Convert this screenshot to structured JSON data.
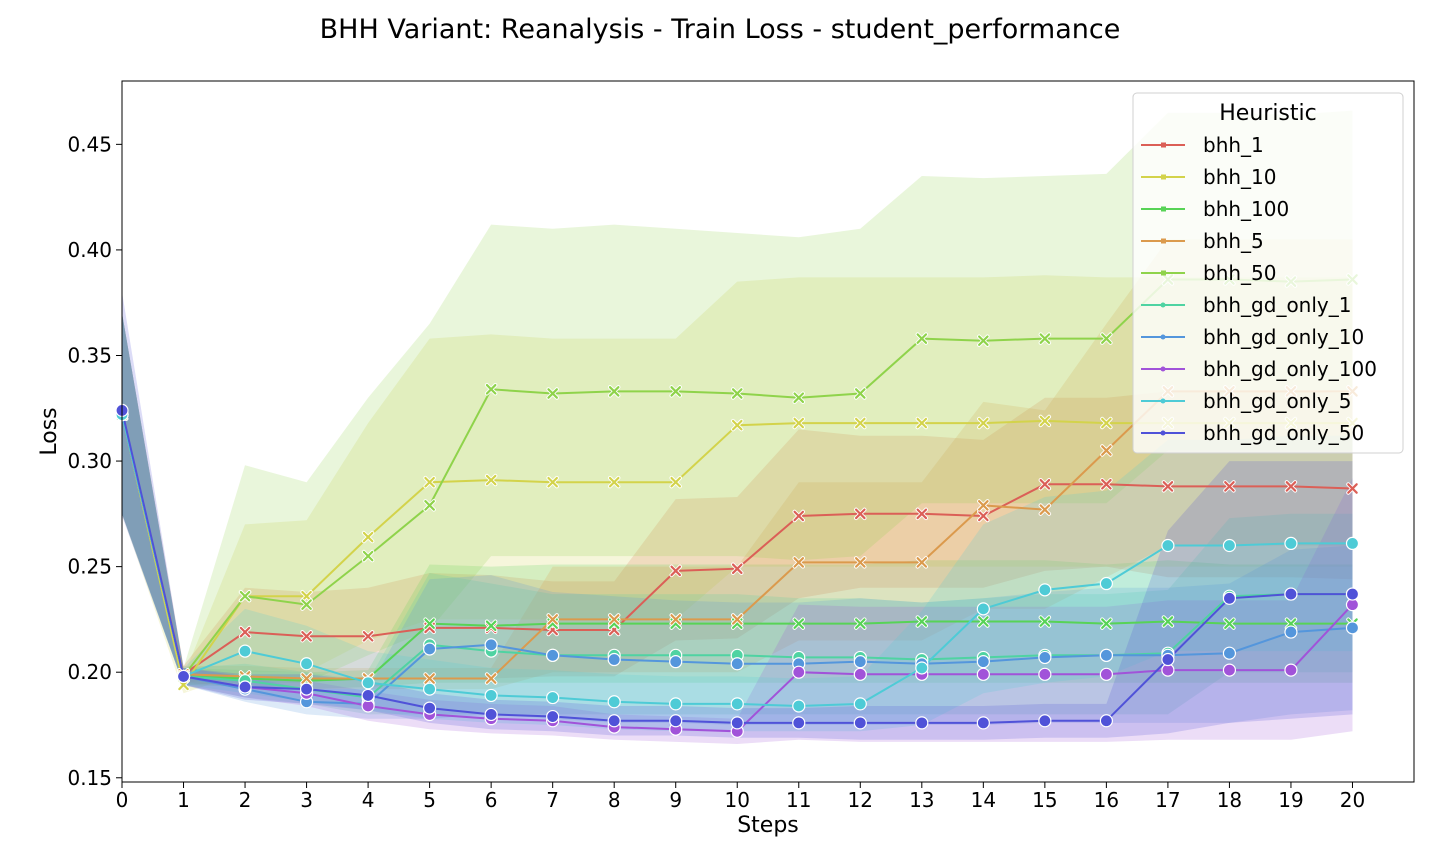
{
  "chart_data": {
    "type": "line",
    "title": "BHH Variant: Reanalysis - Train Loss - student_performance",
    "xlabel": "Steps",
    "ylabel": "Loss",
    "xlim": [
      0,
      21
    ],
    "ylim": [
      0.148,
      0.48
    ],
    "x": [
      0,
      1,
      2,
      3,
      4,
      5,
      6,
      7,
      8,
      9,
      10,
      11,
      12,
      13,
      14,
      15,
      16,
      17,
      18,
      19,
      20
    ],
    "x_ticks": [
      "0",
      "1",
      "2",
      "3",
      "4",
      "5",
      "6",
      "7",
      "8",
      "9",
      "10",
      "11",
      "12",
      "13",
      "14",
      "15",
      "16",
      "17",
      "18",
      "19",
      "20"
    ],
    "y_ticks": [
      0.15,
      0.2,
      0.25,
      0.3,
      0.35,
      0.4,
      0.45
    ],
    "y_tick_labels": [
      "0.15",
      "0.20",
      "0.25",
      "0.30",
      "0.35",
      "0.40",
      "0.45"
    ],
    "grid": false,
    "legend": {
      "title": "Heuristic",
      "placement": "top-right"
    },
    "series": [
      {
        "name": "bhh_1",
        "color": "#db5f57",
        "marker": "x",
        "values": [
          0.322,
          0.199,
          0.219,
          0.217,
          0.217,
          0.221,
          0.221,
          0.22,
          0.22,
          0.248,
          0.249,
          0.274,
          0.275,
          0.275,
          0.274,
          0.289,
          0.289,
          0.288,
          0.288,
          0.288,
          0.287
        ],
        "lower": [
          0.275,
          0.195,
          0.198,
          0.197,
          0.196,
          0.197,
          0.197,
          0.198,
          0.198,
          0.215,
          0.216,
          0.235,
          0.24,
          0.24,
          0.24,
          0.248,
          0.25,
          0.245,
          0.245,
          0.245,
          0.244
        ],
        "upper": [
          0.37,
          0.203,
          0.24,
          0.238,
          0.24,
          0.247,
          0.246,
          0.243,
          0.243,
          0.282,
          0.283,
          0.315,
          0.312,
          0.312,
          0.31,
          0.33,
          0.33,
          0.333,
          0.333,
          0.333,
          0.332
        ]
      },
      {
        "name": "bhh_10",
        "color": "#d3d34b",
        "marker": "x",
        "values": [
          0.322,
          0.194,
          0.236,
          0.236,
          0.264,
          0.29,
          0.291,
          0.29,
          0.29,
          0.29,
          0.317,
          0.318,
          0.318,
          0.318,
          0.318,
          0.319,
          0.318,
          0.318,
          0.318,
          0.318,
          0.318
        ],
        "lower": [
          0.275,
          0.19,
          0.2,
          0.2,
          0.215,
          0.225,
          0.225,
          0.225,
          0.225,
          0.225,
          0.25,
          0.25,
          0.25,
          0.25,
          0.25,
          0.25,
          0.25,
          0.25,
          0.25,
          0.25,
          0.25
        ],
        "upper": [
          0.37,
          0.198,
          0.27,
          0.272,
          0.318,
          0.358,
          0.36,
          0.358,
          0.358,
          0.358,
          0.385,
          0.387,
          0.387,
          0.387,
          0.387,
          0.388,
          0.387,
          0.387,
          0.387,
          0.387,
          0.387
        ]
      },
      {
        "name": "bhh_100",
        "color": "#57d356",
        "marker": "x",
        "values": [
          0.322,
          0.198,
          0.197,
          0.196,
          0.197,
          0.223,
          0.222,
          0.223,
          0.223,
          0.223,
          0.223,
          0.223,
          0.223,
          0.224,
          0.224,
          0.224,
          0.223,
          0.224,
          0.223,
          0.223,
          0.223
        ],
        "lower": [
          0.275,
          0.194,
          0.193,
          0.192,
          0.193,
          0.195,
          0.195,
          0.195,
          0.195,
          0.195,
          0.195,
          0.195,
          0.195,
          0.195,
          0.195,
          0.195,
          0.195,
          0.195,
          0.195,
          0.195,
          0.195
        ],
        "upper": [
          0.37,
          0.202,
          0.201,
          0.2,
          0.201,
          0.251,
          0.25,
          0.251,
          0.251,
          0.251,
          0.251,
          0.251,
          0.251,
          0.253,
          0.253,
          0.253,
          0.251,
          0.253,
          0.251,
          0.251,
          0.251
        ]
      },
      {
        "name": "bhh_5",
        "color": "#db9a4d",
        "marker": "x",
        "values": [
          0.322,
          0.199,
          0.198,
          0.197,
          0.197,
          0.197,
          0.197,
          0.225,
          0.225,
          0.225,
          0.225,
          0.252,
          0.252,
          0.252,
          0.279,
          0.277,
          0.305,
          0.333,
          0.333,
          0.333,
          0.333
        ],
        "lower": [
          0.275,
          0.195,
          0.193,
          0.192,
          0.192,
          0.192,
          0.192,
          0.2,
          0.2,
          0.2,
          0.2,
          0.215,
          0.215,
          0.215,
          0.23,
          0.23,
          0.245,
          0.26,
          0.26,
          0.26,
          0.26
        ],
        "upper": [
          0.37,
          0.203,
          0.203,
          0.202,
          0.202,
          0.202,
          0.202,
          0.25,
          0.25,
          0.25,
          0.25,
          0.29,
          0.29,
          0.29,
          0.328,
          0.324,
          0.365,
          0.405,
          0.405,
          0.405,
          0.405
        ]
      },
      {
        "name": "bhh_50",
        "color": "#8fd34b",
        "marker": "x",
        "values": [
          0.322,
          0.198,
          0.236,
          0.232,
          0.255,
          0.279,
          0.334,
          0.332,
          0.333,
          0.333,
          0.332,
          0.33,
          0.332,
          0.358,
          0.357,
          0.358,
          0.358,
          0.386,
          0.386,
          0.385,
          0.386
        ],
        "lower": [
          0.275,
          0.194,
          0.195,
          0.195,
          0.208,
          0.22,
          0.255,
          0.255,
          0.255,
          0.255,
          0.255,
          0.253,
          0.255,
          0.28,
          0.28,
          0.28,
          0.28,
          0.305,
          0.305,
          0.305,
          0.305
        ],
        "upper": [
          0.37,
          0.202,
          0.298,
          0.29,
          0.33,
          0.365,
          0.412,
          0.41,
          0.412,
          0.41,
          0.408,
          0.406,
          0.41,
          0.435,
          0.434,
          0.435,
          0.436,
          0.465,
          0.465,
          0.464,
          0.466
        ]
      },
      {
        "name": "bhh_gd_only_1",
        "color": "#4fd3a2",
        "marker": "o",
        "values": [
          0.322,
          0.198,
          0.196,
          0.192,
          0.188,
          0.213,
          0.21,
          0.208,
          0.208,
          0.208,
          0.208,
          0.207,
          0.207,
          0.206,
          0.207,
          0.208,
          0.208,
          0.209,
          0.236,
          0.237,
          0.237
        ],
        "lower": [
          0.275,
          0.194,
          0.188,
          0.185,
          0.18,
          0.18,
          0.18,
          0.18,
          0.18,
          0.18,
          0.18,
          0.18,
          0.18,
          0.18,
          0.18,
          0.18,
          0.18,
          0.18,
          0.2,
          0.2,
          0.2
        ],
        "upper": [
          0.37,
          0.202,
          0.204,
          0.2,
          0.196,
          0.247,
          0.242,
          0.237,
          0.237,
          0.237,
          0.237,
          0.235,
          0.235,
          0.233,
          0.235,
          0.237,
          0.237,
          0.239,
          0.273,
          0.275,
          0.275
        ]
      },
      {
        "name": "bhh_gd_only_10",
        "color": "#5496dc",
        "marker": "o",
        "values": [
          0.322,
          0.198,
          0.192,
          0.186,
          0.185,
          0.211,
          0.213,
          0.208,
          0.206,
          0.205,
          0.204,
          0.204,
          0.205,
          0.204,
          0.205,
          0.207,
          0.208,
          0.208,
          0.209,
          0.219,
          0.221
        ],
        "lower": [
          0.275,
          0.194,
          0.186,
          0.18,
          0.178,
          0.178,
          0.18,
          0.178,
          0.176,
          0.176,
          0.175,
          0.175,
          0.175,
          0.175,
          0.175,
          0.176,
          0.176,
          0.176,
          0.176,
          0.18,
          0.182
        ],
        "upper": [
          0.37,
          0.202,
          0.198,
          0.192,
          0.192,
          0.244,
          0.246,
          0.238,
          0.236,
          0.234,
          0.233,
          0.233,
          0.235,
          0.233,
          0.235,
          0.238,
          0.24,
          0.24,
          0.242,
          0.258,
          0.26
        ]
      },
      {
        "name": "bhh_gd_only_100",
        "color": "#a153d9",
        "marker": "o",
        "values": [
          0.322,
          0.198,
          0.193,
          0.19,
          0.184,
          0.18,
          0.178,
          0.177,
          0.174,
          0.173,
          0.172,
          0.2,
          0.199,
          0.199,
          0.199,
          0.199,
          0.199,
          0.201,
          0.201,
          0.201,
          0.232
        ],
        "lower": [
          0.275,
          0.194,
          0.188,
          0.184,
          0.177,
          0.173,
          0.171,
          0.17,
          0.168,
          0.167,
          0.166,
          0.168,
          0.167,
          0.167,
          0.167,
          0.167,
          0.167,
          0.168,
          0.168,
          0.168,
          0.172
        ],
        "upper": [
          0.37,
          0.202,
          0.198,
          0.196,
          0.191,
          0.187,
          0.185,
          0.184,
          0.18,
          0.179,
          0.178,
          0.232,
          0.231,
          0.231,
          0.231,
          0.231,
          0.231,
          0.234,
          0.234,
          0.234,
          0.292
        ]
      },
      {
        "name": "bhh_gd_only_5",
        "color": "#4ecbd6",
        "marker": "o",
        "values": [
          0.322,
          0.198,
          0.21,
          0.204,
          0.195,
          0.192,
          0.189,
          0.188,
          0.186,
          0.185,
          0.185,
          0.184,
          0.185,
          0.202,
          0.23,
          0.239,
          0.242,
          0.26,
          0.26,
          0.261,
          0.261
        ],
        "lower": [
          0.275,
          0.194,
          0.19,
          0.186,
          0.182,
          0.178,
          0.176,
          0.175,
          0.173,
          0.172,
          0.172,
          0.172,
          0.172,
          0.175,
          0.19,
          0.195,
          0.198,
          0.21,
          0.21,
          0.21,
          0.21
        ],
        "upper": [
          0.37,
          0.202,
          0.23,
          0.222,
          0.21,
          0.206,
          0.202,
          0.201,
          0.199,
          0.198,
          0.198,
          0.197,
          0.198,
          0.229,
          0.27,
          0.283,
          0.286,
          0.31,
          0.31,
          0.312,
          0.312
        ]
      },
      {
        "name": "bhh_gd_only_50",
        "color": "#5052d8",
        "marker": "o",
        "values": [
          0.324,
          0.198,
          0.193,
          0.192,
          0.189,
          0.183,
          0.18,
          0.179,
          0.177,
          0.177,
          0.176,
          0.176,
          0.176,
          0.176,
          0.176,
          0.177,
          0.177,
          0.206,
          0.235,
          0.237,
          0.237
        ],
        "lower": [
          0.274,
          0.194,
          0.187,
          0.185,
          0.182,
          0.176,
          0.173,
          0.172,
          0.17,
          0.17,
          0.169,
          0.169,
          0.168,
          0.168,
          0.168,
          0.169,
          0.169,
          0.171,
          0.176,
          0.178,
          0.18
        ],
        "upper": [
          0.38,
          0.202,
          0.199,
          0.199,
          0.196,
          0.19,
          0.187,
          0.186,
          0.184,
          0.184,
          0.183,
          0.183,
          0.184,
          0.184,
          0.184,
          0.185,
          0.185,
          0.267,
          0.3,
          0.3,
          0.3
        ]
      }
    ]
  }
}
